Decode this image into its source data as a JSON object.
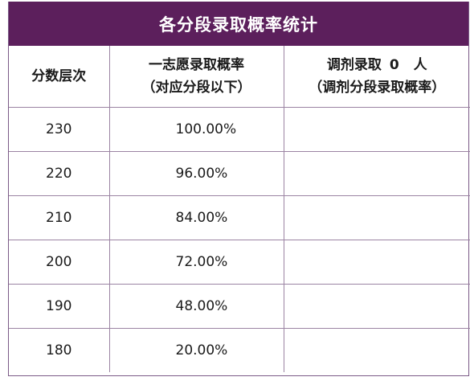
{
  "title": "各分段录取概率统计",
  "header": {
    "col1": "分数层次",
    "col2_line1": "一志愿录取概率",
    "col2_line2": "（对应分段以下）",
    "col3_prefix": "调剂录取",
    "col3_count": "0",
    "col3_suffix": "人",
    "col3_line2": "（调剂分段录取概率）"
  },
  "rows": [
    {
      "score": "230",
      "rate": "100.00%",
      "adjust": ""
    },
    {
      "score": "220",
      "rate": "96.00%",
      "adjust": ""
    },
    {
      "score": "210",
      "rate": "84.00%",
      "adjust": ""
    },
    {
      "score": "200",
      "rate": "72.00%",
      "adjust": ""
    },
    {
      "score": "190",
      "rate": "48.00%",
      "adjust": ""
    },
    {
      "score": "180",
      "rate": "20.00%",
      "adjust": ""
    }
  ],
  "colors": {
    "title_bg": "#5c1f5c",
    "border": "#9b84a3"
  }
}
